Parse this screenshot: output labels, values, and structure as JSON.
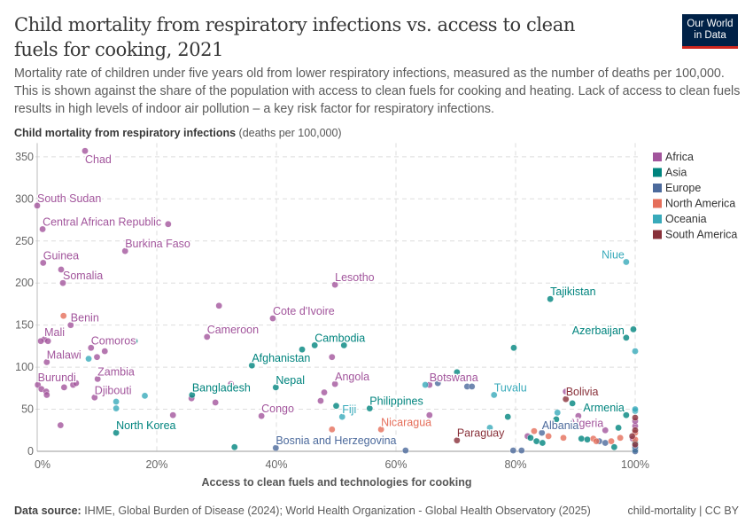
{
  "header": {
    "title": "Child mortality from respiratory infections vs. access to clean fuels for cooking, 2021",
    "subtitle": "Mortality rate of children under five years old from lower respiratory infections, measured as the number of deaths per 100,000. This is shown against the share of the population with access to clean fuels for cooking and heating. Lack of access to clean fuels results in high levels of indoor air pollution – a key risk factor for respiratory infections.",
    "logo": "Our World in Data"
  },
  "footer": {
    "source_label": "Data source:",
    "source": "IHME, Global Burden of Disease (2024); World Health Organization - Global Health Observatory (2025)",
    "credit": "child-mortality | CC BY"
  },
  "chart_data": {
    "type": "scatter",
    "ylabel": "Child mortality from respiratory infections",
    "ylabel_unit": "(deaths per 100,000)",
    "xlabel": "Access to clean fuels and technologies for cooking",
    "xlim": [
      0,
      100
    ],
    "ylim": [
      0,
      360
    ],
    "xticks": [
      "0%",
      "20%",
      "40%",
      "60%",
      "80%",
      "100%"
    ],
    "xtick_values": [
      0,
      20,
      40,
      60,
      80,
      100
    ],
    "yticks": [
      "0",
      "50",
      "100",
      "150",
      "200",
      "250",
      "300",
      "350"
    ],
    "ytick_values": [
      0,
      50,
      100,
      150,
      200,
      250,
      300,
      350
    ],
    "grid": true,
    "legend_position": "right",
    "regions": [
      {
        "name": "Africa",
        "color": "#a2559c"
      },
      {
        "name": "Asia",
        "color": "#00847e"
      },
      {
        "name": "Europe",
        "color": "#4c6a9c"
      },
      {
        "name": "North America",
        "color": "#e56e5a"
      },
      {
        "name": "Oceania",
        "color": "#38aaba"
      },
      {
        "name": "South America",
        "color": "#883039"
      }
    ],
    "points": [
      {
        "r": "Africa",
        "x": 8.0,
        "y": 357,
        "label": "Chad"
      },
      {
        "r": "Africa",
        "x": 0,
        "y": 292,
        "label": "South Sudan"
      },
      {
        "r": "Africa",
        "x": 0.9,
        "y": 264,
        "label": "Central African Republic"
      },
      {
        "r": "Africa",
        "x": 21.9,
        "y": 270
      },
      {
        "r": "Africa",
        "x": 14.7,
        "y": 238,
        "label": "Burkina Faso"
      },
      {
        "r": "Africa",
        "x": 1.0,
        "y": 224,
        "label": "Guinea"
      },
      {
        "r": "Africa",
        "x": 4.0,
        "y": 216
      },
      {
        "r": "Africa",
        "x": 4.3,
        "y": 200,
        "label": "Somalia"
      },
      {
        "r": "Africa",
        "x": 49.8,
        "y": 198,
        "label": "Lesotho"
      },
      {
        "r": "Africa",
        "x": 30.4,
        "y": 173
      },
      {
        "r": "Africa",
        "x": 39.4,
        "y": 158,
        "label": "Cote d'Ivoire"
      },
      {
        "r": "Africa",
        "x": 28.4,
        "y": 136,
        "label": "Cameroon"
      },
      {
        "r": "Africa",
        "x": 5.6,
        "y": 150,
        "label": "Benin"
      },
      {
        "r": "Africa",
        "x": 1.2,
        "y": 133,
        "label": "Mali"
      },
      {
        "r": "Africa",
        "x": 0.6,
        "y": 131
      },
      {
        "r": "Africa",
        "x": 1.8,
        "y": 131
      },
      {
        "r": "Africa",
        "x": 9.0,
        "y": 123,
        "label": "Comoros"
      },
      {
        "r": "Africa",
        "x": 11.3,
        "y": 119
      },
      {
        "r": "Africa",
        "x": 10.0,
        "y": 112
      },
      {
        "r": "Africa",
        "x": 1.6,
        "y": 106,
        "label": "Malawi"
      },
      {
        "r": "Africa",
        "x": 10.1,
        "y": 86,
        "label": "Zambia"
      },
      {
        "r": "Africa",
        "x": 0.1,
        "y": 79,
        "label": "Burundi"
      },
      {
        "r": "Africa",
        "x": 0.7,
        "y": 74
      },
      {
        "r": "Africa",
        "x": 1.5,
        "y": 71
      },
      {
        "r": "Africa",
        "x": 1.6,
        "y": 67
      },
      {
        "r": "Africa",
        "x": 4.5,
        "y": 76
      },
      {
        "r": "Africa",
        "x": 6.0,
        "y": 79
      },
      {
        "r": "Africa",
        "x": 6.5,
        "y": 81
      },
      {
        "r": "Africa",
        "x": 9.6,
        "y": 64,
        "label": "Djibouti"
      },
      {
        "r": "Africa",
        "x": 3.9,
        "y": 31
      },
      {
        "r": "Africa",
        "x": 22.7,
        "y": 43
      },
      {
        "r": "Africa",
        "x": 25.8,
        "y": 63
      },
      {
        "r": "Africa",
        "x": 29.8,
        "y": 58
      },
      {
        "r": "Africa",
        "x": 32.4,
        "y": 80
      },
      {
        "r": "Africa",
        "x": 37.5,
        "y": 42,
        "label": "Congo"
      },
      {
        "r": "Africa",
        "x": 49.3,
        "y": 112
      },
      {
        "r": "Africa",
        "x": 49.8,
        "y": 80,
        "label": "Angola"
      },
      {
        "r": "Africa",
        "x": 48.0,
        "y": 70
      },
      {
        "r": "Africa",
        "x": 47.4,
        "y": 60
      },
      {
        "r": "Africa",
        "x": 65.6,
        "y": 43
      },
      {
        "r": "Africa",
        "x": 65.6,
        "y": 79,
        "label": "Botswana"
      },
      {
        "r": "Africa",
        "x": 82.0,
        "y": 18
      },
      {
        "r": "Africa",
        "x": 88.4,
        "y": 71
      },
      {
        "r": "Africa",
        "x": 90.5,
        "y": 42
      },
      {
        "r": "Africa",
        "x": 95.0,
        "y": 25,
        "label": "Algeria"
      },
      {
        "r": "Africa",
        "x": 100,
        "y": 30
      },
      {
        "r": "Africa",
        "x": 100,
        "y": 36
      },
      {
        "r": "Africa",
        "x": 99.6,
        "y": 15
      },
      {
        "r": "Asia",
        "x": 85.8,
        "y": 181,
        "label": "Tajikistan"
      },
      {
        "r": "Asia",
        "x": 98.5,
        "y": 135,
        "label": "Azerbaijan"
      },
      {
        "r": "Asia",
        "x": 99.7,
        "y": 145
      },
      {
        "r": "Asia",
        "x": 79.7,
        "y": 123
      },
      {
        "r": "Asia",
        "x": 70.2,
        "y": 94
      },
      {
        "r": "Asia",
        "x": 46.4,
        "y": 126,
        "label": "Cambodia"
      },
      {
        "r": "Asia",
        "x": 44.3,
        "y": 121
      },
      {
        "r": "Asia",
        "x": 51.3,
        "y": 126
      },
      {
        "r": "Asia",
        "x": 16.3,
        "y": 131
      },
      {
        "r": "Asia",
        "x": 35.9,
        "y": 102,
        "label": "Afghanistan"
      },
      {
        "r": "Asia",
        "x": 39.9,
        "y": 76,
        "label": "Nepal"
      },
      {
        "r": "Asia",
        "x": 25.9,
        "y": 67,
        "label": "Bangladesh"
      },
      {
        "r": "Asia",
        "x": 13.2,
        "y": 22,
        "label": "North Korea"
      },
      {
        "r": "Asia",
        "x": 33.0,
        "y": 5
      },
      {
        "r": "Asia",
        "x": 50.0,
        "y": 54
      },
      {
        "r": "Asia",
        "x": 55.6,
        "y": 51,
        "label": "Philippines"
      },
      {
        "r": "Asia",
        "x": 89.5,
        "y": 57
      },
      {
        "r": "Asia",
        "x": 78.7,
        "y": 41
      },
      {
        "r": "Asia",
        "x": 86.8,
        "y": 38
      },
      {
        "r": "Asia",
        "x": 98.5,
        "y": 43,
        "label": "Armenia"
      },
      {
        "r": "Asia",
        "x": 97.2,
        "y": 28
      },
      {
        "r": "Asia",
        "x": 82.5,
        "y": 16
      },
      {
        "r": "Asia",
        "x": 83.5,
        "y": 12
      },
      {
        "r": "Asia",
        "x": 84.5,
        "y": 10
      },
      {
        "r": "Asia",
        "x": 91.0,
        "y": 15
      },
      {
        "r": "Asia",
        "x": 92.0,
        "y": 14
      },
      {
        "r": "Asia",
        "x": 96.5,
        "y": 5
      },
      {
        "r": "Asia",
        "x": 100,
        "y": 10
      },
      {
        "r": "Asia",
        "x": 100,
        "y": 2
      },
      {
        "r": "Europe",
        "x": 39.9,
        "y": 4,
        "label": "Bosnia and Herzegovina"
      },
      {
        "r": "Europe",
        "x": 61.6,
        "y": 1
      },
      {
        "r": "Europe",
        "x": 79.6,
        "y": 1
      },
      {
        "r": "Europe",
        "x": 81.0,
        "y": 1
      },
      {
        "r": "Europe",
        "x": 84.4,
        "y": 22,
        "label": "Albania"
      },
      {
        "r": "Europe",
        "x": 67.0,
        "y": 81
      },
      {
        "r": "Europe",
        "x": 71.9,
        "y": 77
      },
      {
        "r": "Europe",
        "x": 72.7,
        "y": 77
      },
      {
        "r": "Europe",
        "x": 94.0,
        "y": 12
      },
      {
        "r": "Europe",
        "x": 95.0,
        "y": 10
      },
      {
        "r": "Europe",
        "x": 100,
        "y": 5
      },
      {
        "r": "Europe",
        "x": 100,
        "y": 0
      },
      {
        "r": "North America",
        "x": 4.4,
        "y": 161
      },
      {
        "r": "North America",
        "x": 49.3,
        "y": 26
      },
      {
        "r": "North America",
        "x": 57.5,
        "y": 26,
        "label": "Nicaragua"
      },
      {
        "r": "North America",
        "x": 83.1,
        "y": 24
      },
      {
        "r": "North America",
        "x": 85.5,
        "y": 18
      },
      {
        "r": "North America",
        "x": 88.0,
        "y": 16
      },
      {
        "r": "North America",
        "x": 93.0,
        "y": 15
      },
      {
        "r": "North America",
        "x": 93.5,
        "y": 12
      },
      {
        "r": "North America",
        "x": 96.0,
        "y": 12
      },
      {
        "r": "North America",
        "x": 97.5,
        "y": 16
      },
      {
        "r": "North America",
        "x": 100,
        "y": 22
      },
      {
        "r": "North America",
        "x": 100,
        "y": 14
      },
      {
        "r": "Oceania",
        "x": 98.5,
        "y": 225,
        "label": "Niue"
      },
      {
        "r": "Oceania",
        "x": 100,
        "y": 119
      },
      {
        "r": "Oceania",
        "x": 76.4,
        "y": 67,
        "label": "Tuvalu"
      },
      {
        "r": "Oceania",
        "x": 64.9,
        "y": 79
      },
      {
        "r": "Oceania",
        "x": 8.6,
        "y": 110
      },
      {
        "r": "Oceania",
        "x": 13.2,
        "y": 59
      },
      {
        "r": "Oceania",
        "x": 13.2,
        "y": 51
      },
      {
        "r": "Oceania",
        "x": 18.0,
        "y": 66
      },
      {
        "r": "Oceania",
        "x": 51.0,
        "y": 41,
        "label": "Fiji"
      },
      {
        "r": "Oceania",
        "x": 75.7,
        "y": 28
      },
      {
        "r": "Oceania",
        "x": 87.0,
        "y": 46
      },
      {
        "r": "Oceania",
        "x": 100,
        "y": 48
      },
      {
        "r": "Oceania",
        "x": 100,
        "y": 50
      },
      {
        "r": "South America",
        "x": 88.4,
        "y": 62,
        "label": "Bolivia"
      },
      {
        "r": "South America",
        "x": 70.2,
        "y": 13,
        "label": "Paraguay"
      },
      {
        "r": "South America",
        "x": 100,
        "y": 25
      },
      {
        "r": "South America",
        "x": 100,
        "y": 40
      },
      {
        "r": "South America",
        "x": 100,
        "y": 8
      },
      {
        "r": "South America",
        "x": 99.5,
        "y": 18
      }
    ]
  }
}
